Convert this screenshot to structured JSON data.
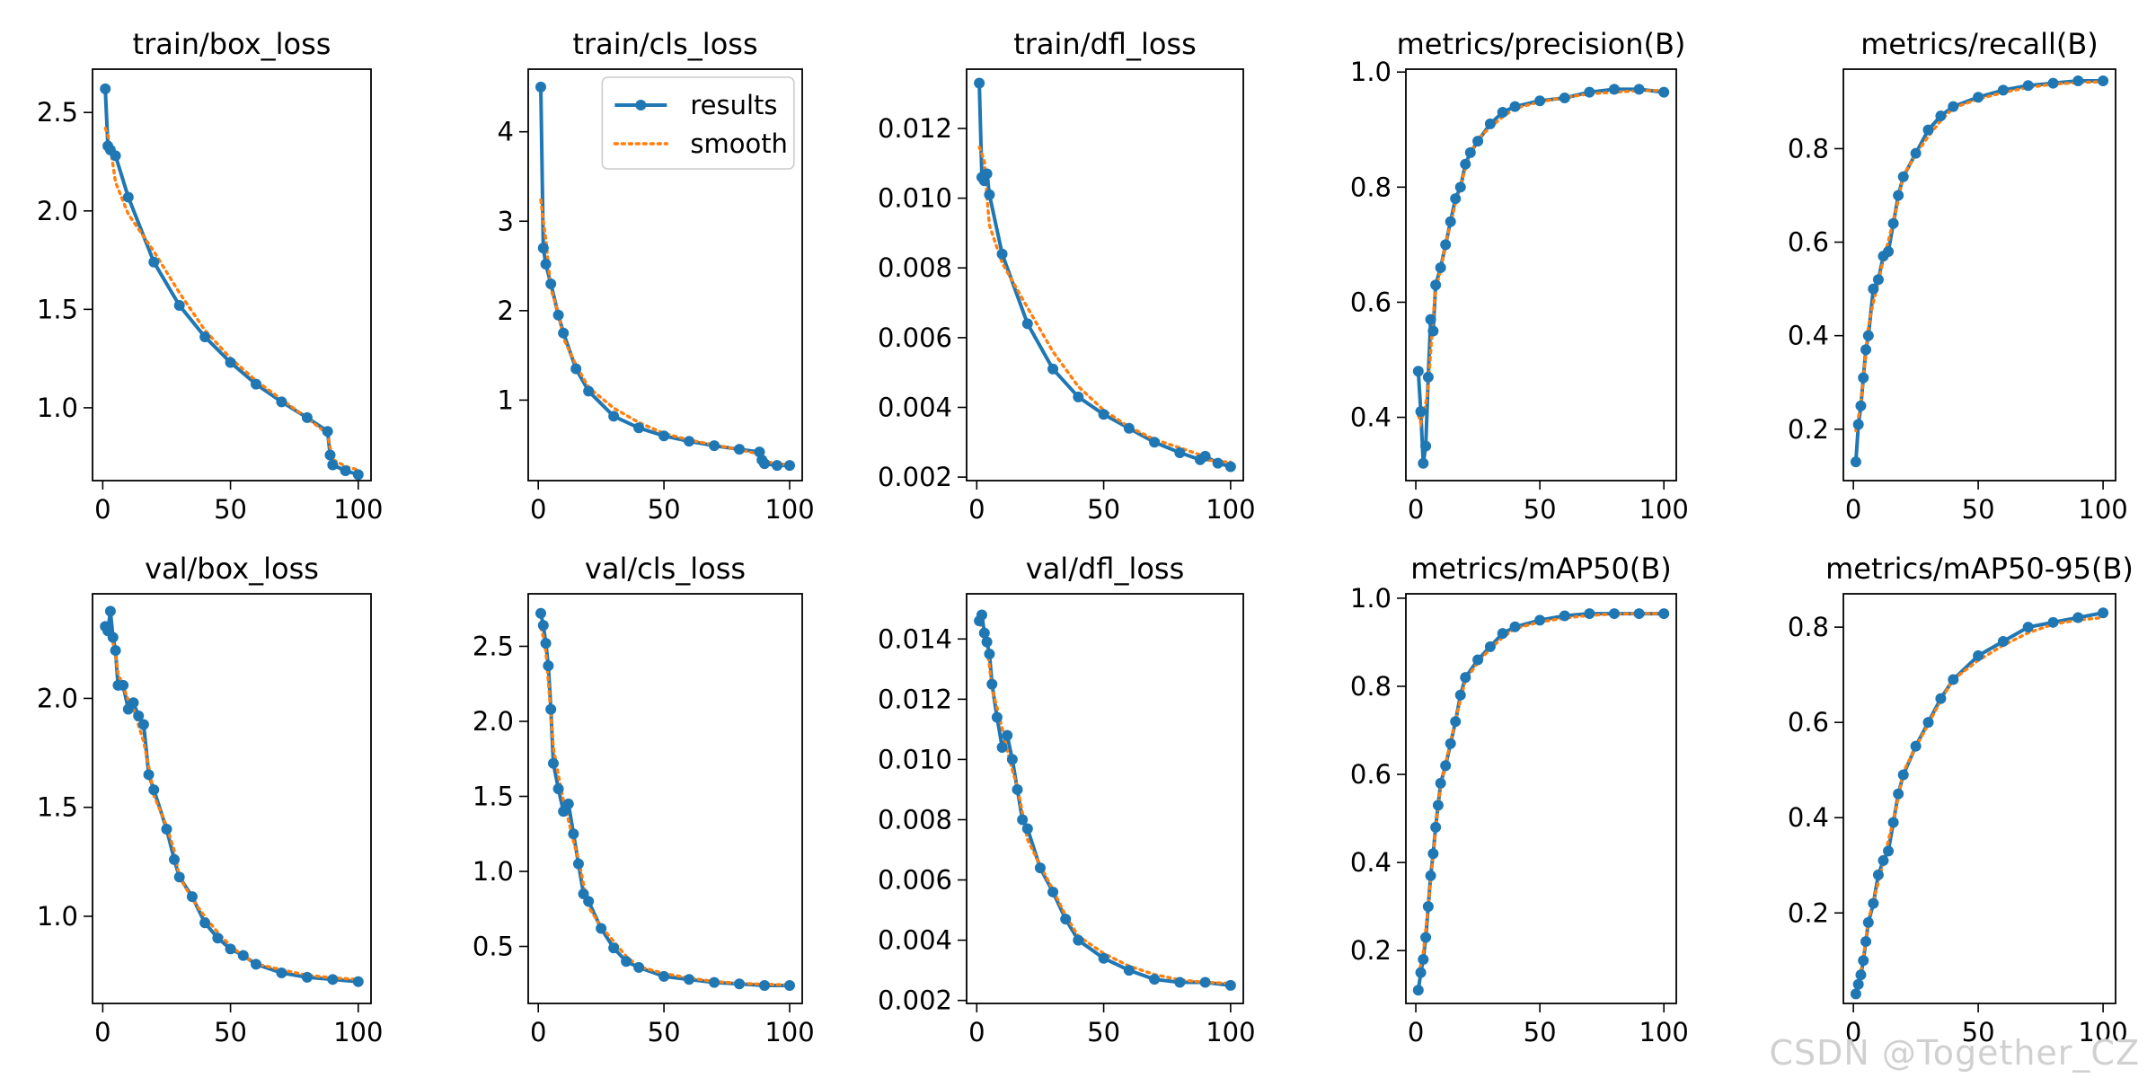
{
  "watermark": "CSDN @Together_CZ",
  "colors": {
    "results": "#1f77b4",
    "smooth": "#ff7f0e",
    "axis": "#000000"
  },
  "legend": {
    "results_label": "results",
    "smooth_label": "smooth"
  },
  "chart_data": [
    {
      "type": "line",
      "title": "train/box_loss",
      "xlim": [
        -4,
        105
      ],
      "ylim": [
        0.63,
        2.72
      ],
      "xticks": [
        0,
        50,
        100
      ],
      "yticks": [
        1.0,
        1.5,
        2.0,
        2.5
      ],
      "ytick_labels": [
        "1.0",
        "1.5",
        "2.0",
        "2.5"
      ],
      "legend": false,
      "x": [
        1,
        2,
        3,
        5,
        10,
        20,
        30,
        40,
        50,
        60,
        70,
        80,
        88,
        89,
        90,
        95,
        100
      ],
      "values": [
        2.62,
        2.33,
        2.31,
        2.28,
        2.07,
        1.74,
        1.52,
        1.36,
        1.23,
        1.12,
        1.03,
        0.95,
        0.88,
        0.76,
        0.71,
        0.68,
        0.66
      ]
    },
    {
      "type": "line",
      "title": "train/cls_loss",
      "xlim": [
        -4,
        105
      ],
      "ylim": [
        0.1,
        4.7
      ],
      "xticks": [
        0,
        50,
        100
      ],
      "yticks": [
        1,
        2,
        3,
        4
      ],
      "ytick_labels": [
        "1",
        "2",
        "3",
        "4"
      ],
      "legend": true,
      "x": [
        1,
        2,
        3,
        5,
        8,
        10,
        15,
        20,
        30,
        40,
        50,
        60,
        70,
        80,
        88,
        89,
        90,
        95,
        100
      ],
      "values": [
        4.5,
        2.7,
        2.52,
        2.3,
        1.95,
        1.75,
        1.35,
        1.1,
        0.82,
        0.69,
        0.6,
        0.54,
        0.49,
        0.45,
        0.42,
        0.33,
        0.29,
        0.27,
        0.27
      ]
    },
    {
      "type": "line",
      "title": "train/dfl_loss",
      "xlim": [
        -4,
        105
      ],
      "ylim": [
        0.0019,
        0.0137
      ],
      "xticks": [
        0,
        50,
        100
      ],
      "yticks": [
        0.002,
        0.004,
        0.006,
        0.008,
        0.01,
        0.012
      ],
      "ytick_labels": [
        "0.002",
        "0.004",
        "0.006",
        "0.008",
        "0.010",
        "0.012"
      ],
      "legend": false,
      "x": [
        1,
        2,
        3,
        4,
        5,
        10,
        20,
        30,
        40,
        50,
        60,
        70,
        80,
        88,
        90,
        95,
        100
      ],
      "values": [
        0.0133,
        0.0106,
        0.0105,
        0.0107,
        0.0101,
        0.0084,
        0.0064,
        0.0051,
        0.0043,
        0.0038,
        0.0034,
        0.003,
        0.0027,
        0.0025,
        0.0026,
        0.0024,
        0.0023
      ]
    },
    {
      "type": "line",
      "title": "metrics/precision(B)",
      "xlim": [
        -4,
        105
      ],
      "ylim": [
        0.29,
        1.005
      ],
      "xticks": [
        0,
        50,
        100
      ],
      "yticks": [
        0.4,
        0.6,
        0.8,
        1.0
      ],
      "ytick_labels": [
        "0.4",
        "0.6",
        "0.8",
        "1.0"
      ],
      "legend": false,
      "x": [
        1,
        2,
        3,
        4,
        5,
        6,
        7,
        8,
        10,
        12,
        14,
        16,
        18,
        20,
        22,
        25,
        30,
        35,
        40,
        50,
        60,
        70,
        80,
        90,
        100
      ],
      "values": [
        0.48,
        0.41,
        0.32,
        0.35,
        0.47,
        0.57,
        0.55,
        0.63,
        0.66,
        0.7,
        0.74,
        0.78,
        0.8,
        0.84,
        0.86,
        0.88,
        0.91,
        0.93,
        0.94,
        0.95,
        0.955,
        0.965,
        0.97,
        0.97,
        0.965
      ]
    },
    {
      "type": "line",
      "title": "metrics/recall(B)",
      "xlim": [
        -4,
        105
      ],
      "ylim": [
        0.09,
        0.97
      ],
      "xticks": [
        0,
        50,
        100
      ],
      "yticks": [
        0.2,
        0.4,
        0.6,
        0.8
      ],
      "ytick_labels": [
        "0.2",
        "0.4",
        "0.6",
        "0.8"
      ],
      "legend": false,
      "x": [
        1,
        2,
        3,
        4,
        5,
        6,
        8,
        10,
        12,
        14,
        16,
        18,
        20,
        25,
        30,
        35,
        40,
        50,
        60,
        70,
        80,
        90,
        100
      ],
      "values": [
        0.13,
        0.21,
        0.25,
        0.31,
        0.37,
        0.4,
        0.5,
        0.52,
        0.57,
        0.58,
        0.64,
        0.7,
        0.74,
        0.79,
        0.84,
        0.87,
        0.89,
        0.91,
        0.925,
        0.935,
        0.94,
        0.945,
        0.945
      ]
    },
    {
      "type": "line",
      "title": "val/box_loss",
      "xlim": [
        -4,
        105
      ],
      "ylim": [
        0.6,
        2.48
      ],
      "xticks": [
        0,
        50,
        100
      ],
      "yticks": [
        1.0,
        1.5,
        2.0
      ],
      "ytick_labels": [
        "1.0",
        "1.5",
        "2.0"
      ],
      "legend": false,
      "x": [
        1,
        2,
        3,
        4,
        5,
        6,
        8,
        10,
        12,
        14,
        16,
        18,
        20,
        25,
        28,
        30,
        35,
        40,
        45,
        50,
        55,
        60,
        70,
        80,
        90,
        100
      ],
      "values": [
        2.33,
        2.31,
        2.4,
        2.28,
        2.22,
        2.06,
        2.06,
        1.95,
        1.98,
        1.92,
        1.88,
        1.65,
        1.58,
        1.4,
        1.26,
        1.18,
        1.09,
        0.97,
        0.9,
        0.85,
        0.82,
        0.78,
        0.74,
        0.72,
        0.71,
        0.7
      ]
    },
    {
      "type": "line",
      "title": "val/cls_loss",
      "xlim": [
        -4,
        105
      ],
      "ylim": [
        0.12,
        2.85
      ],
      "xticks": [
        0,
        50,
        100
      ],
      "yticks": [
        0.5,
        1.0,
        1.5,
        2.0,
        2.5
      ],
      "ytick_labels": [
        "0.5",
        "1.0",
        "1.5",
        "2.0",
        "2.5"
      ],
      "legend": false,
      "x": [
        1,
        2,
        3,
        4,
        5,
        6,
        8,
        10,
        12,
        14,
        16,
        18,
        20,
        25,
        30,
        35,
        40,
        50,
        60,
        70,
        80,
        90,
        100
      ],
      "values": [
        2.72,
        2.64,
        2.52,
        2.37,
        2.08,
        1.72,
        1.55,
        1.4,
        1.45,
        1.25,
        1.05,
        0.85,
        0.8,
        0.62,
        0.49,
        0.4,
        0.36,
        0.3,
        0.28,
        0.26,
        0.25,
        0.24,
        0.24
      ]
    },
    {
      "type": "line",
      "title": "val/dfl_loss",
      "xlim": [
        -4,
        105
      ],
      "ylim": [
        0.0019,
        0.0155
      ],
      "xticks": [
        0,
        50,
        100
      ],
      "yticks": [
        0.002,
        0.004,
        0.006,
        0.008,
        0.01,
        0.012,
        0.014
      ],
      "ytick_labels": [
        "0.002",
        "0.004",
        "0.006",
        "0.008",
        "0.010",
        "0.012",
        "0.014"
      ],
      "legend": false,
      "x": [
        1,
        2,
        3,
        4,
        5,
        6,
        8,
        10,
        12,
        14,
        16,
        18,
        20,
        25,
        30,
        35,
        40,
        50,
        60,
        70,
        80,
        90,
        100
      ],
      "values": [
        0.0146,
        0.0148,
        0.0142,
        0.0139,
        0.0135,
        0.0125,
        0.0114,
        0.0104,
        0.0108,
        0.01,
        0.009,
        0.008,
        0.0077,
        0.0064,
        0.0056,
        0.0047,
        0.004,
        0.0034,
        0.003,
        0.0027,
        0.0026,
        0.0026,
        0.0025
      ]
    },
    {
      "type": "line",
      "title": "metrics/mAP50(B)",
      "xlim": [
        -4,
        105
      ],
      "ylim": [
        0.08,
        1.01
      ],
      "xticks": [
        0,
        50,
        100
      ],
      "yticks": [
        0.2,
        0.4,
        0.6,
        0.8,
        1.0
      ],
      "ytick_labels": [
        "0.2",
        "0.4",
        "0.6",
        "0.8",
        "1.0"
      ],
      "legend": false,
      "x": [
        1,
        2,
        3,
        4,
        5,
        6,
        7,
        8,
        9,
        10,
        12,
        14,
        16,
        18,
        20,
        25,
        30,
        35,
        40,
        50,
        60,
        70,
        80,
        90,
        100
      ],
      "values": [
        0.11,
        0.15,
        0.18,
        0.23,
        0.3,
        0.37,
        0.42,
        0.48,
        0.53,
        0.58,
        0.62,
        0.67,
        0.72,
        0.78,
        0.82,
        0.86,
        0.89,
        0.92,
        0.935,
        0.95,
        0.96,
        0.965,
        0.965,
        0.965,
        0.965
      ]
    },
    {
      "type": "line",
      "title": "metrics/mAP50-95(B)",
      "xlim": [
        -4,
        105
      ],
      "ylim": [
        0.01,
        0.87
      ],
      "xticks": [
        0,
        50,
        100
      ],
      "yticks": [
        0.2,
        0.4,
        0.6,
        0.8
      ],
      "ytick_labels": [
        "0.2",
        "0.4",
        "0.6",
        "0.8"
      ],
      "legend": false,
      "x": [
        1,
        2,
        3,
        4,
        5,
        6,
        8,
        10,
        12,
        14,
        16,
        18,
        20,
        25,
        30,
        35,
        40,
        50,
        60,
        70,
        80,
        90,
        100
      ],
      "values": [
        0.03,
        0.05,
        0.07,
        0.1,
        0.14,
        0.18,
        0.22,
        0.28,
        0.31,
        0.33,
        0.39,
        0.45,
        0.49,
        0.55,
        0.6,
        0.65,
        0.69,
        0.74,
        0.77,
        0.8,
        0.81,
        0.82,
        0.83
      ]
    }
  ]
}
